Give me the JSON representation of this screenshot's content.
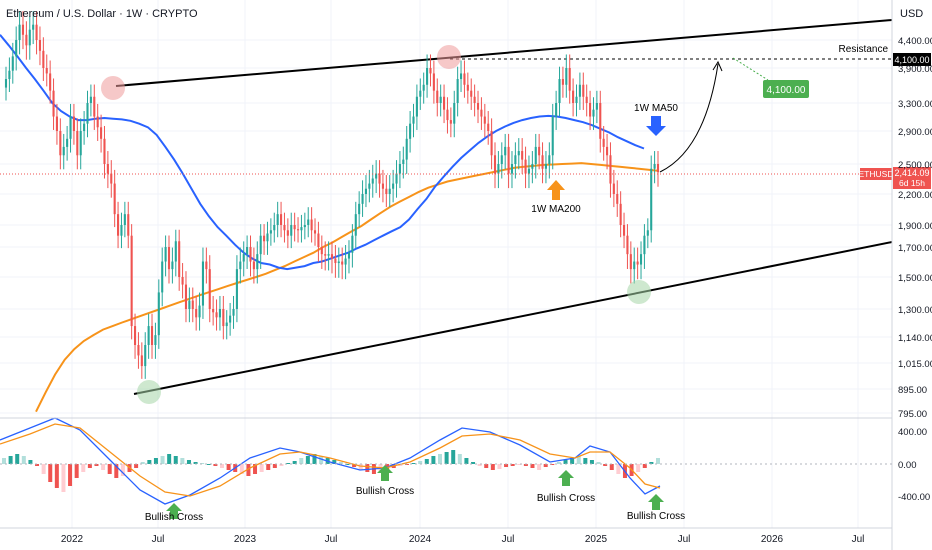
{
  "header": {
    "title": "Ethereum / U.S. Dollar · 1W · CRYPTO",
    "currency": "USD"
  },
  "colors": {
    "up": "#26a69a",
    "down": "#ef5350",
    "ma50": "#2962ff",
    "ma200": "#f7931a",
    "macd": "#2962ff",
    "signal": "#f7931a",
    "green_label": "#4caf50",
    "ethusd_tag": "#ef5350"
  },
  "chart_data": {
    "type": "candlestick",
    "x_ticks": [
      "2022",
      "Jul",
      "2023",
      "Jul",
      "2024",
      "Jul",
      "2025",
      "Jul",
      "2026",
      "Jul"
    ],
    "y_ticks": [
      "4,400.00",
      "3,900.00",
      "3,300.00",
      "2,900.00",
      "2,500.00",
      "2,200.00",
      "1,900.00",
      "1,700.00",
      "1,500.00",
      "1,300.00",
      "1,140.00",
      "1,015.00",
      "895.00",
      "795.00"
    ],
    "macd_ticks": [
      "400.00",
      "0.00",
      "-400.00"
    ],
    "resistance": {
      "label": "Resistance",
      "value": "4,100.00"
    },
    "target_label": "4,100.00",
    "last_price": {
      "symbol": "ETHUSD",
      "price": "2,414.09",
      "countdown": "6d 15h"
    },
    "annotations": {
      "ma50": "1W MA50",
      "ma200": "1W MA200",
      "crosses": [
        "Bullish Cross",
        "Bullish Cross",
        "Bullish Cross",
        "Bullish Cross"
      ]
    },
    "closes": [
      3700,
      3850,
      4100,
      4400,
      4700,
      4500,
      4300,
      4600,
      4700,
      4400,
      4200,
      3900,
      3800,
      3500,
      3100,
      2900,
      2600,
      2700,
      2800,
      3100,
      2900,
      2600,
      2900,
      3000,
      3300,
      3400,
      3100,
      2950,
      2800,
      2500,
      2400,
      2300,
      2000,
      1800,
      1900,
      2000,
      1800,
      1200,
      1100,
      1050,
      1000,
      1100,
      1200,
      1100,
      1150,
      1400,
      1600,
      1700,
      1550,
      1600,
      1750,
      1500,
      1450,
      1300,
      1350,
      1300,
      1250,
      1320,
      1600,
      1550,
      1300,
      1280,
      1250,
      1300,
      1200,
      1220,
      1260,
      1300,
      1550,
      1600,
      1650,
      1700,
      1600,
      1550,
      1650,
      1800,
      1750,
      1820,
      1850,
      1900,
      2000,
      1900,
      1850,
      1800,
      1900,
      1860,
      1850,
      1880,
      1900,
      1950,
      1850,
      1820,
      1700,
      1650,
      1640,
      1650,
      1620,
      1590,
      1600,
      1580,
      1620,
      1660,
      1800,
      2000,
      2100,
      2200,
      2250,
      2300,
      2350,
      2400,
      2300,
      2250,
      2200,
      2250,
      2300,
      2400,
      2500,
      2550,
      2800,
      3000,
      3100,
      3400,
      3500,
      3600,
      3900,
      3800,
      3500,
      3300,
      3400,
      3200,
      3050,
      3000,
      3300,
      3700,
      3800,
      3600,
      3500,
      3400,
      3300,
      3200,
      3100,
      3000,
      2900,
      2600,
      2400,
      2500,
      2600,
      2700,
      2400,
      2500,
      2600,
      2650,
      2550,
      2400,
      2450,
      2500,
      2700,
      2600,
      2450,
      2500,
      2600,
      3100,
      3300,
      3700,
      3600,
      3900,
      3500,
      3300,
      3400,
      3600,
      3400,
      3300,
      3100,
      3200,
      3300,
      2800,
      2700,
      2600,
      2300,
      2200,
      2100,
      1900,
      1800,
      1650,
      1550,
      1600,
      1580,
      1650,
      1800,
      1850,
      2450,
      2500,
      2414
    ],
    "ma50": [
      4500,
      4300,
      4100,
      3900,
      3700,
      3500,
      3300,
      3180,
      3100,
      3050,
      3050,
      3070,
      3080,
      3070,
      3060,
      3040,
      3000,
      2950,
      2850,
      2700,
      2550,
      2400,
      2250,
      2100,
      1980,
      1880,
      1800,
      1720,
      1660,
      1620,
      1590,
      1580,
      1560,
      1550,
      1560,
      1570,
      1590,
      1600,
      1620,
      1640,
      1660,
      1690,
      1720,
      1760,
      1800,
      1840,
      1880,
      1950,
      2050,
      2150,
      2270,
      2370,
      2470,
      2570,
      2660,
      2750,
      2830,
      2900,
      2960,
      3010,
      3050,
      3080,
      3100,
      3110,
      3100,
      3080,
      3050,
      3020,
      2980,
      2930,
      2880,
      2820,
      2770,
      2720,
      2680
    ],
    "ma200": [
      800,
      880,
      960,
      1030,
      1080,
      1120,
      1150,
      1180,
      1200,
      1220,
      1240,
      1260,
      1280,
      1300,
      1320,
      1340,
      1360,
      1380,
      1400,
      1420,
      1440,
      1460,
      1480,
      1500,
      1520,
      1545,
      1570,
      1600,
      1630,
      1660,
      1700,
      1740,
      1790,
      1840,
      1890,
      1950,
      2010,
      2070,
      2120,
      2170,
      2220,
      2260,
      2290,
      2320,
      2340,
      2360,
      2380,
      2400,
      2420,
      2440,
      2460,
      2470,
      2480,
      2490,
      2495,
      2500,
      2505,
      2510,
      2500,
      2490,
      2480,
      2470,
      2460,
      2450,
      2440,
      2430
    ]
  }
}
